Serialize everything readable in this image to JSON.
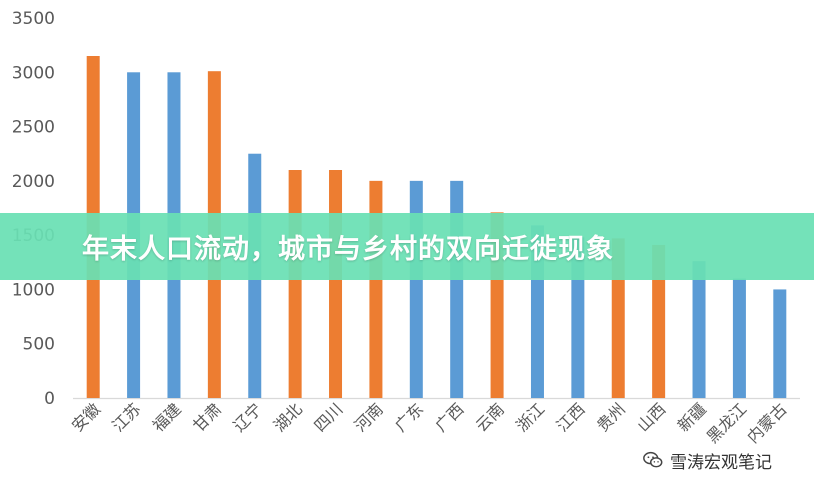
{
  "chart_data": {
    "type": "bar",
    "title": "",
    "xlabel": "",
    "ylabel": "",
    "ylim": [
      0,
      3500
    ],
    "yticks": [
      0,
      500,
      1000,
      1500,
      2000,
      2500,
      3000,
      3500
    ],
    "grid": false,
    "legend": "none",
    "colors": {
      "orange": "#ED7D31",
      "blue": "#5B9BD5"
    },
    "categories": [
      "安徽",
      "江苏",
      "福建",
      "甘肃",
      "辽宁",
      "湖北",
      "四川",
      "河南",
      "广东",
      "广西",
      "云南",
      "浙江",
      "江西",
      "贵州",
      "山西",
      "新疆",
      "黑龙江",
      "内蒙古"
    ],
    "values": [
      3150,
      3000,
      3000,
      3010,
      2250,
      2100,
      2100,
      2000,
      2000,
      2000,
      1710,
      1590,
      1480,
      1470,
      1410,
      1260,
      1100,
      1000
    ],
    "bar_colors": [
      "orange",
      "blue",
      "blue",
      "orange",
      "blue",
      "orange",
      "orange",
      "orange",
      "blue",
      "blue",
      "orange",
      "blue",
      "blue",
      "orange",
      "orange",
      "blue",
      "blue",
      "blue"
    ]
  },
  "banner": {
    "title": "年末人口流动，城市与乡村的双向迁徙现象"
  },
  "watermark": {
    "text": "雪涛宏观笔记",
    "icon": "wechat-icon"
  }
}
